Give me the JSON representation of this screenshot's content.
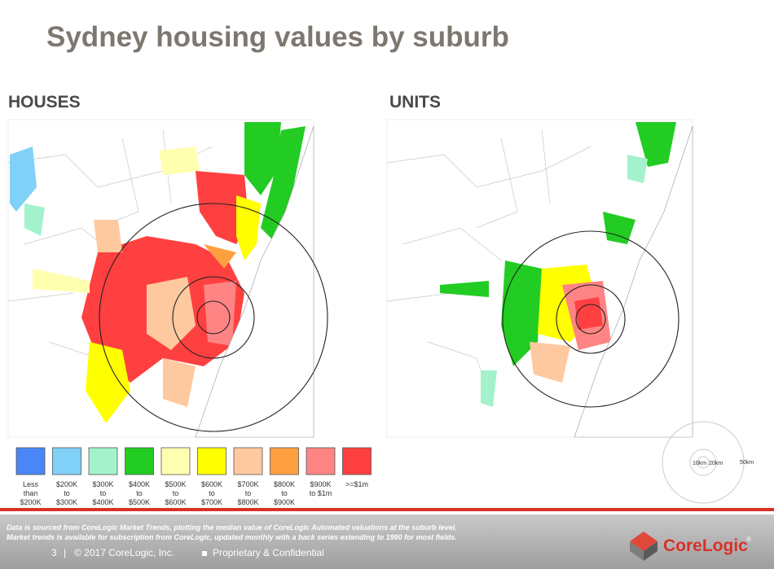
{
  "title": "Sydney housing values by suburb",
  "panels": [
    {
      "label": "HOUSES"
    },
    {
      "label": "UNITS"
    }
  ],
  "legend": {
    "items": [
      {
        "color": "#4a86f7",
        "lines": [
          "Less",
          "than",
          "$200K"
        ]
      },
      {
        "color": "#80d0f8",
        "lines": [
          "$200K",
          "to",
          "$300K"
        ]
      },
      {
        "color": "#a4f2cc",
        "lines": [
          "$300K",
          "to",
          "$400K"
        ]
      },
      {
        "color": "#22cc22",
        "lines": [
          "$400K",
          "to",
          "$500K"
        ]
      },
      {
        "color": "#ffffb0",
        "lines": [
          "$500K",
          "to",
          "$600K"
        ]
      },
      {
        "color": "#ffff00",
        "lines": [
          "$600K",
          "to",
          "$700K"
        ]
      },
      {
        "color": "#ffc9a0",
        "lines": [
          "$700K",
          "to",
          "$800K"
        ]
      },
      {
        "color": "#ffa040",
        "lines": [
          "$800K",
          "to",
          "$900K"
        ]
      },
      {
        "color": "#ff8484",
        "lines": [
          "$900K",
          "to $1m"
        ]
      },
      {
        "color": "#ff4040",
        "lines": [
          ">=$1m"
        ]
      }
    ]
  },
  "scale": {
    "inner": "10km",
    "middle": "20km",
    "outer": "50km"
  },
  "footer": {
    "note": [
      "Data is sourced from CoreLogic Market Trends, plotting the median value of CoreLogic Automated valuations at the suburb level.",
      "Market trends is available for subscription from CoreLogic, updated monthly with a back series extending to 1990 for most fields."
    ],
    "page": "3",
    "separator": "|",
    "copyright": "© 2017 CoreLogic, Inc.",
    "confidential": "Proprietary & Confidential"
  },
  "logo": {
    "name": "CoreLogic",
    "mark": "®"
  }
}
